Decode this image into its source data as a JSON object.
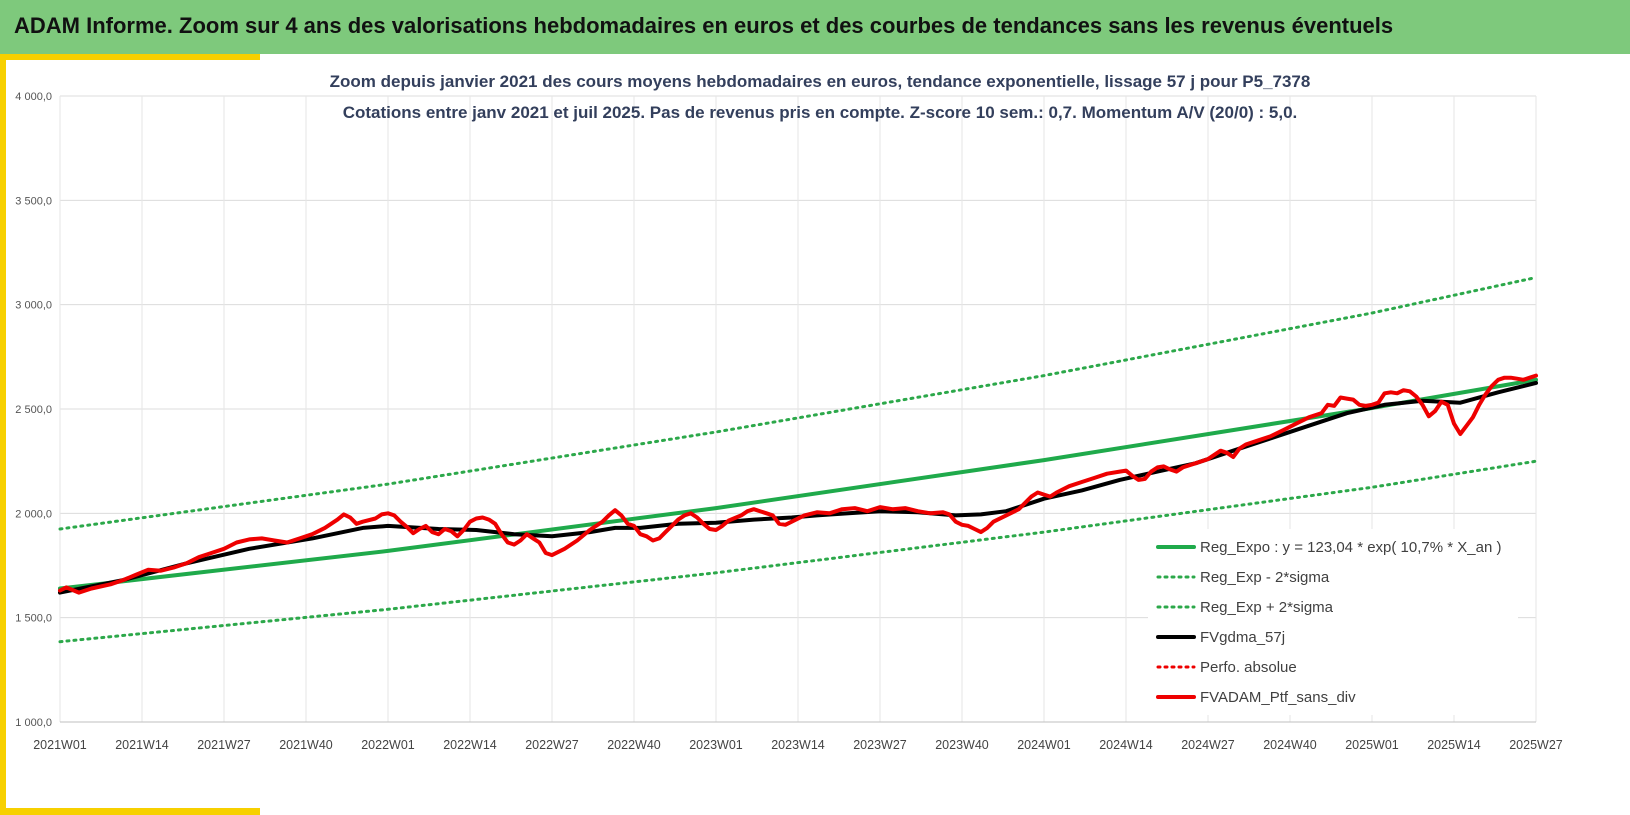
{
  "header": {
    "title": "ADAM Informe. Zoom sur 4 ans des valorisations hebdomadaires en euros et des courbes de tendances sans les revenus éventuels"
  },
  "colors": {
    "header_bg": "#7ec97c",
    "accent_yellow": "#f7d000",
    "trend_green": "#1faa4b",
    "band_green": "#2ca84a",
    "smoothed_black": "#000000",
    "portfolio_red": "#ee0000"
  },
  "chart_data": {
    "type": "line",
    "title_line1": "Zoom depuis janvier 2021 des cours moyens hebdomadaires  en euros, tendance exponentielle, lissage 57 j pour P5_7378",
    "title_line2": "Cotations entre janv 2021 et juil 2025. Pas de revenus pris en compte. Z-score 10 sem.: 0,7. Momentum A/V (20/0) : 5,0.",
    "xlabel": "",
    "ylabel": "",
    "ylim": [
      1000,
      4000
    ],
    "yticks": [
      1000,
      1500,
      2000,
      2500,
      3000,
      3500,
      4000
    ],
    "ytick_labels": [
      "1 000,0",
      "1 500,0",
      "2 000,0",
      "2 500,0",
      "3 000,0",
      "3 500,0",
      "4 000,0"
    ],
    "x_tick_labels": [
      "2021W01",
      "2021W14",
      "2021W27",
      "2021W40",
      "2022W01",
      "2022W14",
      "2022W27",
      "2022W40",
      "2023W01",
      "2023W14",
      "2023W27",
      "2023W40",
      "2024W01",
      "2024W14",
      "2024W27",
      "2024W40",
      "2025W01",
      "2025W14",
      "2025W27"
    ],
    "x_tick_week_index": [
      0,
      13,
      26,
      39,
      52,
      65,
      78,
      91,
      104,
      117,
      130,
      143,
      156,
      169,
      182,
      195,
      208,
      221,
      234
    ],
    "grid": true,
    "legend_position": "bottom-right",
    "series": [
      {
        "name": "Reg_Expo : y = 123,04 * exp( 10,7% *  X_an )",
        "style": "solid-thick",
        "color": "#1faa4b",
        "points": [
          [
            0,
            1640
          ],
          [
            52,
            1820
          ],
          [
            104,
            2025
          ],
          [
            156,
            2255
          ],
          [
            208,
            2505
          ],
          [
            234,
            2640
          ]
        ]
      },
      {
        "name": "Reg_Exp - 2*sigma",
        "style": "dotted",
        "color": "#2ca84a",
        "points": [
          [
            0,
            1385
          ],
          [
            52,
            1540
          ],
          [
            104,
            1715
          ],
          [
            156,
            1910
          ],
          [
            208,
            2125
          ],
          [
            234,
            2250
          ]
        ]
      },
      {
        "name": "Reg_Exp + 2*sigma",
        "style": "dotted",
        "color": "#2ca84a",
        "points": [
          [
            0,
            1925
          ],
          [
            52,
            2140
          ],
          [
            104,
            2390
          ],
          [
            156,
            2660
          ],
          [
            208,
            2960
          ],
          [
            234,
            3130
          ]
        ]
      },
      {
        "name": "FVgdma_57j",
        "style": "solid-thick",
        "color": "#000000",
        "points": [
          [
            0,
            1620
          ],
          [
            10,
            1680
          ],
          [
            20,
            1760
          ],
          [
            30,
            1830
          ],
          [
            40,
            1880
          ],
          [
            48,
            1930
          ],
          [
            52,
            1940
          ],
          [
            60,
            1925
          ],
          [
            66,
            1920
          ],
          [
            72,
            1900
          ],
          [
            78,
            1890
          ],
          [
            84,
            1910
          ],
          [
            88,
            1930
          ],
          [
            92,
            1930
          ],
          [
            98,
            1950
          ],
          [
            104,
            1955
          ],
          [
            110,
            1970
          ],
          [
            116,
            1980
          ],
          [
            120,
            1990
          ],
          [
            125,
            2000
          ],
          [
            130,
            2010
          ],
          [
            136,
            2005
          ],
          [
            142,
            1990
          ],
          [
            146,
            1995
          ],
          [
            150,
            2010
          ],
          [
            156,
            2070
          ],
          [
            162,
            2110
          ],
          [
            168,
            2160
          ],
          [
            174,
            2200
          ],
          [
            180,
            2240
          ],
          [
            186,
            2300
          ],
          [
            192,
            2360
          ],
          [
            198,
            2420
          ],
          [
            204,
            2480
          ],
          [
            210,
            2520
          ],
          [
            216,
            2540
          ],
          [
            222,
            2530
          ],
          [
            228,
            2580
          ],
          [
            234,
            2625
          ]
        ]
      },
      {
        "name": "Perfo. absolue",
        "style": "dotted",
        "color": "#ee0000",
        "points": []
      },
      {
        "name": "FVADAM_Ptf_sans_div",
        "style": "solid-thick",
        "color": "#ee0000",
        "points": [
          [
            0,
            1630
          ],
          [
            1,
            1645
          ],
          [
            3,
            1620
          ],
          [
            5,
            1640
          ],
          [
            8,
            1660
          ],
          [
            10,
            1680
          ],
          [
            12,
            1705
          ],
          [
            14,
            1730
          ],
          [
            16,
            1725
          ],
          [
            18,
            1740
          ],
          [
            20,
            1760
          ],
          [
            22,
            1790
          ],
          [
            24,
            1810
          ],
          [
            26,
            1830
          ],
          [
            28,
            1860
          ],
          [
            30,
            1875
          ],
          [
            32,
            1880
          ],
          [
            34,
            1870
          ],
          [
            36,
            1860
          ],
          [
            38,
            1880
          ],
          [
            40,
            1900
          ],
          [
            42,
            1930
          ],
          [
            44,
            1970
          ],
          [
            45,
            1995
          ],
          [
            46,
            1980
          ],
          [
            47,
            1950
          ],
          [
            48,
            1960
          ],
          [
            50,
            1975
          ],
          [
            51,
            1995
          ],
          [
            52,
            2000
          ],
          [
            53,
            1990
          ],
          [
            54,
            1960
          ],
          [
            55,
            1935
          ],
          [
            56,
            1905
          ],
          [
            57,
            1925
          ],
          [
            58,
            1940
          ],
          [
            59,
            1910
          ],
          [
            60,
            1900
          ],
          [
            61,
            1925
          ],
          [
            62,
            1915
          ],
          [
            63,
            1890
          ],
          [
            64,
            1920
          ],
          [
            65,
            1960
          ],
          [
            66,
            1975
          ],
          [
            67,
            1980
          ],
          [
            68,
            1970
          ],
          [
            69,
            1950
          ],
          [
            70,
            1900
          ],
          [
            71,
            1860
          ],
          [
            72,
            1850
          ],
          [
            73,
            1870
          ],
          [
            74,
            1900
          ],
          [
            75,
            1880
          ],
          [
            76,
            1860
          ],
          [
            77,
            1810
          ],
          [
            78,
            1800
          ],
          [
            80,
            1830
          ],
          [
            82,
            1870
          ],
          [
            84,
            1920
          ],
          [
            86,
            1960
          ],
          [
            87,
            1990
          ],
          [
            88,
            2015
          ],
          [
            89,
            1990
          ],
          [
            90,
            1950
          ],
          [
            91,
            1940
          ],
          [
            92,
            1900
          ],
          [
            93,
            1890
          ],
          [
            94,
            1870
          ],
          [
            95,
            1880
          ],
          [
            96,
            1910
          ],
          [
            97,
            1940
          ],
          [
            98,
            1970
          ],
          [
            99,
            1990
          ],
          [
            100,
            2000
          ],
          [
            101,
            1980
          ],
          [
            102,
            1950
          ],
          [
            103,
            1925
          ],
          [
            104,
            1920
          ],
          [
            105,
            1940
          ],
          [
            106,
            1965
          ],
          [
            108,
            1990
          ],
          [
            109,
            2010
          ],
          [
            110,
            2020
          ],
          [
            112,
            2000
          ],
          [
            113,
            1990
          ],
          [
            114,
            1950
          ],
          [
            115,
            1945
          ],
          [
            116,
            1960
          ],
          [
            118,
            1990
          ],
          [
            120,
            2005
          ],
          [
            122,
            2000
          ],
          [
            124,
            2020
          ],
          [
            126,
            2025
          ],
          [
            128,
            2010
          ],
          [
            130,
            2030
          ],
          [
            132,
            2020
          ],
          [
            134,
            2025
          ],
          [
            136,
            2010
          ],
          [
            138,
            2000
          ],
          [
            140,
            2005
          ],
          [
            141,
            1995
          ],
          [
            142,
            1960
          ],
          [
            143,
            1945
          ],
          [
            144,
            1940
          ],
          [
            145,
            1925
          ],
          [
            146,
            1910
          ],
          [
            147,
            1930
          ],
          [
            148,
            1960
          ],
          [
            150,
            1990
          ],
          [
            152,
            2020
          ],
          [
            154,
            2080
          ],
          [
            155,
            2100
          ],
          [
            156,
            2090
          ],
          [
            157,
            2080
          ],
          [
            158,
            2100
          ],
          [
            160,
            2130
          ],
          [
            162,
            2150
          ],
          [
            164,
            2170
          ],
          [
            166,
            2190
          ],
          [
            168,
            2200
          ],
          [
            169,
            2205
          ],
          [
            170,
            2180
          ],
          [
            171,
            2160
          ],
          [
            172,
            2165
          ],
          [
            173,
            2200
          ],
          [
            174,
            2220
          ],
          [
            175,
            2225
          ],
          [
            176,
            2210
          ],
          [
            177,
            2200
          ],
          [
            178,
            2220
          ],
          [
            180,
            2240
          ],
          [
            182,
            2260
          ],
          [
            184,
            2300
          ],
          [
            185,
            2290
          ],
          [
            186,
            2270
          ],
          [
            187,
            2310
          ],
          [
            188,
            2330
          ],
          [
            190,
            2350
          ],
          [
            192,
            2370
          ],
          [
            194,
            2400
          ],
          [
            196,
            2430
          ],
          [
            198,
            2460
          ],
          [
            200,
            2480
          ],
          [
            201,
            2520
          ],
          [
            202,
            2515
          ],
          [
            203,
            2555
          ],
          [
            204,
            2550
          ],
          [
            205,
            2545
          ],
          [
            206,
            2520
          ],
          [
            207,
            2515
          ],
          [
            208,
            2520
          ],
          [
            209,
            2530
          ],
          [
            210,
            2575
          ],
          [
            211,
            2580
          ],
          [
            212,
            2575
          ],
          [
            213,
            2590
          ],
          [
            214,
            2585
          ],
          [
            215,
            2560
          ],
          [
            216,
            2520
          ],
          [
            217,
            2465
          ],
          [
            218,
            2490
          ],
          [
            219,
            2535
          ],
          [
            220,
            2520
          ],
          [
            221,
            2430
          ],
          [
            222,
            2380
          ],
          [
            223,
            2420
          ],
          [
            224,
            2460
          ],
          [
            225,
            2520
          ],
          [
            226,
            2570
          ],
          [
            227,
            2610
          ],
          [
            228,
            2640
          ],
          [
            229,
            2650
          ],
          [
            230,
            2650
          ],
          [
            231,
            2645
          ],
          [
            232,
            2640
          ],
          [
            233,
            2650
          ],
          [
            234,
            2660
          ]
        ]
      }
    ]
  }
}
